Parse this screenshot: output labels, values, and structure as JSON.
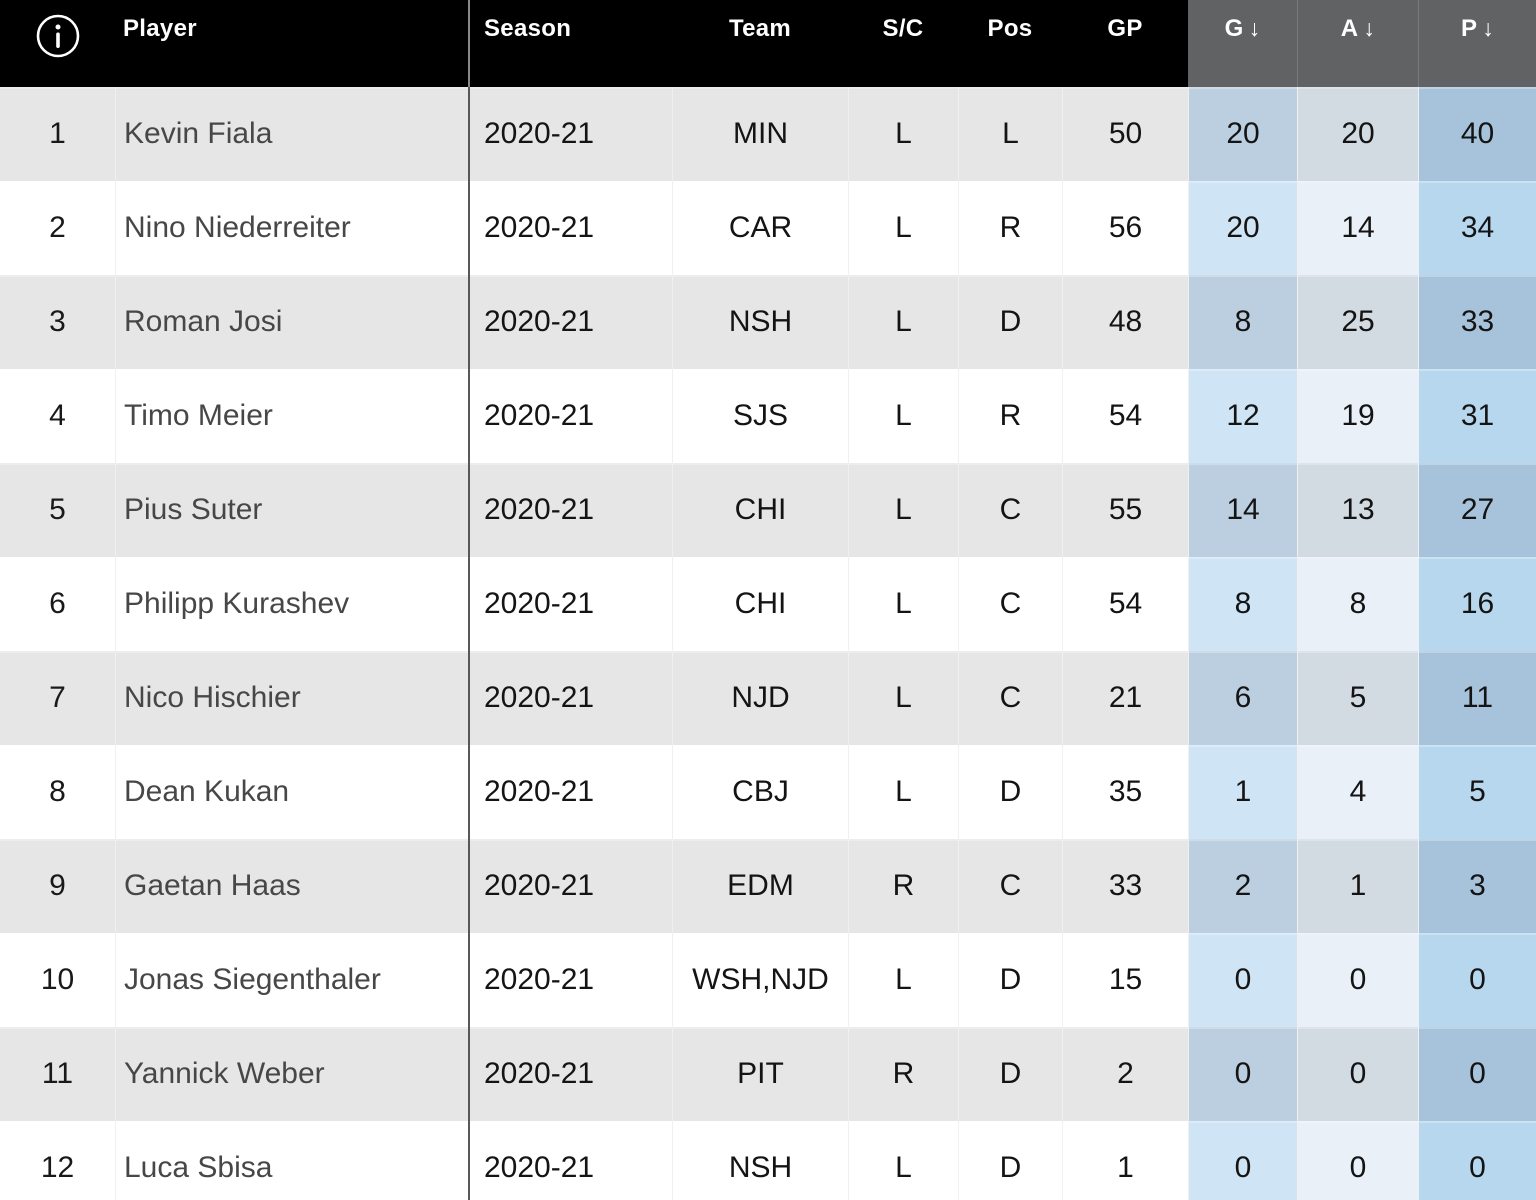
{
  "table": {
    "header": {
      "sort_arrow": "↓"
    },
    "columns": [
      {
        "key": "rank",
        "label": "",
        "align": "center",
        "sorted": false
      },
      {
        "key": "player",
        "label": "Player",
        "align": "left",
        "sorted": false
      },
      {
        "key": "season",
        "label": "Season",
        "align": "left",
        "sorted": false
      },
      {
        "key": "team",
        "label": "Team",
        "align": "center",
        "sorted": false
      },
      {
        "key": "sc",
        "label": "S/C",
        "align": "center",
        "sorted": false
      },
      {
        "key": "pos",
        "label": "Pos",
        "align": "center",
        "sorted": false
      },
      {
        "key": "gp",
        "label": "GP",
        "align": "center",
        "sorted": false
      },
      {
        "key": "g",
        "label": "G",
        "align": "center",
        "sorted": true
      },
      {
        "key": "a",
        "label": "A",
        "align": "center",
        "sorted": true
      },
      {
        "key": "p",
        "label": "P",
        "align": "center",
        "sorted": true
      }
    ],
    "rows": [
      {
        "rank": 1,
        "player": "Kevin Fiala",
        "season": "2020-21",
        "team": "MIN",
        "sc": "L",
        "pos": "L",
        "gp": 50,
        "g": 20,
        "a": 20,
        "p": 40
      },
      {
        "rank": 2,
        "player": "Nino Niederreiter",
        "season": "2020-21",
        "team": "CAR",
        "sc": "L",
        "pos": "R",
        "gp": 56,
        "g": 20,
        "a": 14,
        "p": 34
      },
      {
        "rank": 3,
        "player": "Roman Josi",
        "season": "2020-21",
        "team": "NSH",
        "sc": "L",
        "pos": "D",
        "gp": 48,
        "g": 8,
        "a": 25,
        "p": 33
      },
      {
        "rank": 4,
        "player": "Timo Meier",
        "season": "2020-21",
        "team": "SJS",
        "sc": "L",
        "pos": "R",
        "gp": 54,
        "g": 12,
        "a": 19,
        "p": 31
      },
      {
        "rank": 5,
        "player": "Pius Suter",
        "season": "2020-21",
        "team": "CHI",
        "sc": "L",
        "pos": "C",
        "gp": 55,
        "g": 14,
        "a": 13,
        "p": 27
      },
      {
        "rank": 6,
        "player": "Philipp Kurashev",
        "season": "2020-21",
        "team": "CHI",
        "sc": "L",
        "pos": "C",
        "gp": 54,
        "g": 8,
        "a": 8,
        "p": 16
      },
      {
        "rank": 7,
        "player": "Nico Hischier",
        "season": "2020-21",
        "team": "NJD",
        "sc": "L",
        "pos": "C",
        "gp": 21,
        "g": 6,
        "a": 5,
        "p": 11
      },
      {
        "rank": 8,
        "player": "Dean Kukan",
        "season": "2020-21",
        "team": "CBJ",
        "sc": "L",
        "pos": "D",
        "gp": 35,
        "g": 1,
        "a": 4,
        "p": 5
      },
      {
        "rank": 9,
        "player": "Gaetan Haas",
        "season": "2020-21",
        "team": "EDM",
        "sc": "R",
        "pos": "C",
        "gp": 33,
        "g": 2,
        "a": 1,
        "p": 3
      },
      {
        "rank": 10,
        "player": "Jonas Siegenthaler",
        "season": "2020-21",
        "team": "WSH,NJD",
        "sc": "L",
        "pos": "D",
        "gp": 15,
        "g": 0,
        "a": 0,
        "p": 0
      },
      {
        "rank": 11,
        "player": "Yannick Weber",
        "season": "2020-21",
        "team": "PIT",
        "sc": "R",
        "pos": "D",
        "gp": 2,
        "g": 0,
        "a": 0,
        "p": 0
      },
      {
        "rank": 12,
        "player": "Luca Sbisa",
        "season": "2020-21",
        "team": "NSH",
        "sc": "L",
        "pos": "D",
        "gp": 1,
        "g": 0,
        "a": 0,
        "p": 0
      }
    ],
    "colors": {
      "header_bg": "#000000",
      "sorted_header_bg": "#616264",
      "row_stripe": "#e6e6e6",
      "row_plain": "#ffffff",
      "col_g_on_stripe": "#bccfe0",
      "col_g_on_plain": "#cfe4f5",
      "col_a_on_stripe": "#d2dae2",
      "col_a_on_plain": "#e9f0f8",
      "col_p_on_stripe": "#a7c3db",
      "col_p_on_plain": "#b7d7ee",
      "frozen_divider": "#58585a"
    }
  }
}
